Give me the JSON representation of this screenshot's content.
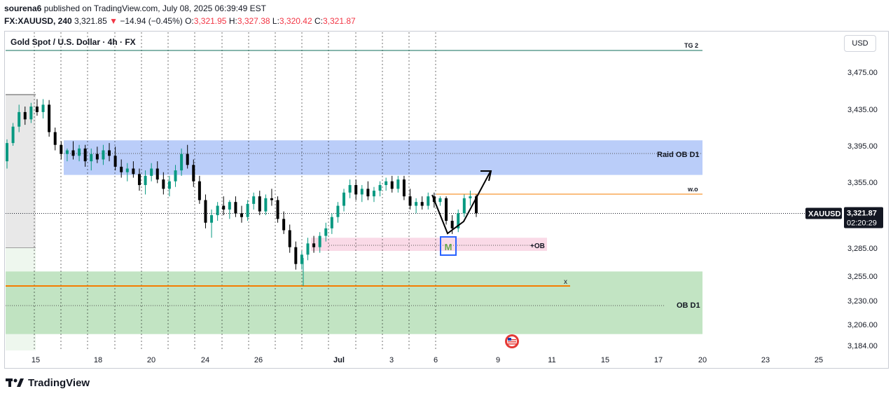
{
  "publisher": {
    "user": "sourena6",
    "rest": " published on TradingView.com, July 08, 2025 06:39:49 EST"
  },
  "symbol_line": {
    "symbol": "FX:XAUUSD, 240",
    "price": "3,321.85",
    "change_arrow": "▼",
    "change": "−14.94 (−0.45%)",
    "o_label": "O:",
    "o": "3,321.95",
    "h_label": "H:",
    "h": "3,327.38",
    "l_label": "L:",
    "l": "3,320.42",
    "c_label": "C:",
    "c": "3,321.87"
  },
  "chart_title": "Gold Spot / U.S. Dollar · 4h · FX",
  "currency_button": "USD",
  "footer": {
    "brand": "TradingView"
  },
  "colors": {
    "up": "#089981",
    "down": "#000000",
    "zone_blue": "#a9c1f7",
    "zone_green": "#b7dfb8",
    "zone_pink": "#f9d3e3",
    "orange": "#f57c00",
    "accent": "#2962ff"
  },
  "chart_data": {
    "type": "candlestick",
    "y_ticks": [
      "3,475.00",
      "3,435.00",
      "3,395.00",
      "3,355.00",
      "3,285.00",
      "3,255.00",
      "3,230.00",
      "3,206.00",
      "3,184.00"
    ],
    "y_tick_values": [
      3475,
      3435,
      3395,
      3355,
      3285,
      3255,
      3230,
      3206,
      3184
    ],
    "x_ticks": [
      "15",
      "18",
      "20",
      "24",
      "26",
      "Jul",
      "3",
      "6",
      "9",
      "11",
      "15",
      "17",
      "20",
      "23",
      "25"
    ],
    "current_price": {
      "symbol": "XAUUSD",
      "value": "3,321.87",
      "countdown": "02:20:29"
    },
    "annotations": {
      "tg2": "TG 2",
      "raid_ob": "Raid OB D1",
      "wo": "w.o",
      "plus_ob": "+OB",
      "m_label": "M",
      "x_label": "x",
      "ob_d1": "OB D1"
    },
    "zones": [
      {
        "name": "Raid OB D1",
        "low": 3363,
        "high": 3401
      },
      {
        "name": "+OB",
        "low": 3282,
        "high": 3296
      },
      {
        "name": "OB D1",
        "low": 3196,
        "high": 3260
      }
    ],
    "levels": [
      {
        "name": "TG 2",
        "value": 3498
      },
      {
        "name": "w.o",
        "value": 3341
      },
      {
        "name": "x",
        "value": 3251
      }
    ],
    "candles": [
      [
        3378,
        3402,
        3370,
        3398
      ],
      [
        3398,
        3420,
        3395,
        3416
      ],
      [
        3416,
        3440,
        3410,
        3432
      ],
      [
        3432,
        3438,
        3418,
        3424
      ],
      [
        3424,
        3442,
        3420,
        3438
      ],
      [
        3438,
        3446,
        3428,
        3432
      ],
      [
        3432,
        3446,
        3425,
        3440
      ],
      [
        3440,
        3445,
        3405,
        3410
      ],
      [
        3410,
        3415,
        3390,
        3396
      ],
      [
        3396,
        3400,
        3380,
        3386
      ],
      [
        3386,
        3392,
        3378,
        3390
      ],
      [
        3390,
        3400,
        3380,
        3384
      ],
      [
        3384,
        3396,
        3378,
        3392
      ],
      [
        3392,
        3396,
        3372,
        3378
      ],
      [
        3378,
        3392,
        3368,
        3386
      ],
      [
        3386,
        3394,
        3376,
        3380
      ],
      [
        3380,
        3396,
        3374,
        3390
      ],
      [
        3390,
        3398,
        3378,
        3384
      ],
      [
        3384,
        3394,
        3368,
        3372
      ],
      [
        3372,
        3380,
        3360,
        3366
      ],
      [
        3366,
        3376,
        3356,
        3370
      ],
      [
        3370,
        3378,
        3360,
        3364
      ],
      [
        3364,
        3370,
        3346,
        3352
      ],
      [
        3352,
        3368,
        3342,
        3362
      ],
      [
        3362,
        3376,
        3356,
        3370
      ],
      [
        3370,
        3378,
        3354,
        3358
      ],
      [
        3358,
        3366,
        3342,
        3348
      ],
      [
        3348,
        3362,
        3340,
        3356
      ],
      [
        3356,
        3374,
        3350,
        3368
      ],
      [
        3368,
        3392,
        3362,
        3386
      ],
      [
        3386,
        3396,
        3370,
        3374
      ],
      [
        3374,
        3380,
        3350,
        3356
      ],
      [
        3356,
        3362,
        3332,
        3336
      ],
      [
        3336,
        3342,
        3306,
        3312
      ],
      [
        3312,
        3326,
        3296,
        3320
      ],
      [
        3320,
        3334,
        3314,
        3330
      ],
      [
        3330,
        3340,
        3320,
        3326
      ],
      [
        3326,
        3336,
        3316,
        3334
      ],
      [
        3334,
        3340,
        3318,
        3322
      ],
      [
        3322,
        3330,
        3312,
        3318
      ],
      [
        3318,
        3336,
        3314,
        3332
      ],
      [
        3332,
        3344,
        3326,
        3340
      ],
      [
        3340,
        3346,
        3320,
        3324
      ],
      [
        3324,
        3342,
        3320,
        3338
      ],
      [
        3338,
        3348,
        3330,
        3336
      ],
      [
        3336,
        3340,
        3312,
        3316
      ],
      [
        3316,
        3324,
        3300,
        3304
      ],
      [
        3304,
        3310,
        3280,
        3286
      ],
      [
        3286,
        3292,
        3262,
        3268
      ],
      [
        3268,
        3282,
        3262,
        3278
      ],
      [
        3278,
        3296,
        3272,
        3290
      ],
      [
        3290,
        3298,
        3280,
        3286
      ],
      [
        3286,
        3302,
        3280,
        3298
      ],
      [
        3298,
        3312,
        3292,
        3306
      ],
      [
        3306,
        3322,
        3300,
        3318
      ],
      [
        3318,
        3334,
        3312,
        3330
      ],
      [
        3330,
        3348,
        3324,
        3344
      ],
      [
        3344,
        3358,
        3338,
        3352
      ],
      [
        3352,
        3358,
        3336,
        3342
      ],
      [
        3342,
        3352,
        3334,
        3348
      ],
      [
        3348,
        3356,
        3336,
        3340
      ],
      [
        3340,
        3350,
        3334,
        3346
      ],
      [
        3346,
        3356,
        3340,
        3352
      ],
      [
        3352,
        3360,
        3346,
        3356
      ],
      [
        3356,
        3362,
        3344,
        3348
      ],
      [
        3348,
        3362,
        3344,
        3358
      ],
      [
        3358,
        3362,
        3336,
        3340
      ],
      [
        3340,
        3348,
        3326,
        3330
      ],
      [
        3330,
        3338,
        3322,
        3334
      ],
      [
        3334,
        3340,
        3326,
        3330
      ],
      [
        3330,
        3344,
        3326,
        3340
      ],
      [
        3340,
        3344,
        3328,
        3334
      ],
      [
        3334,
        3340,
        3330,
        3338
      ],
      [
        3338,
        3340,
        3310,
        3314
      ],
      [
        3314,
        3320,
        3300,
        3306
      ],
      [
        3306,
        3326,
        3302,
        3322
      ],
      [
        3322,
        3342,
        3318,
        3338
      ],
      [
        3338,
        3346,
        3330,
        3340
      ],
      [
        3340,
        3342,
        3318,
        3322
      ]
    ]
  }
}
